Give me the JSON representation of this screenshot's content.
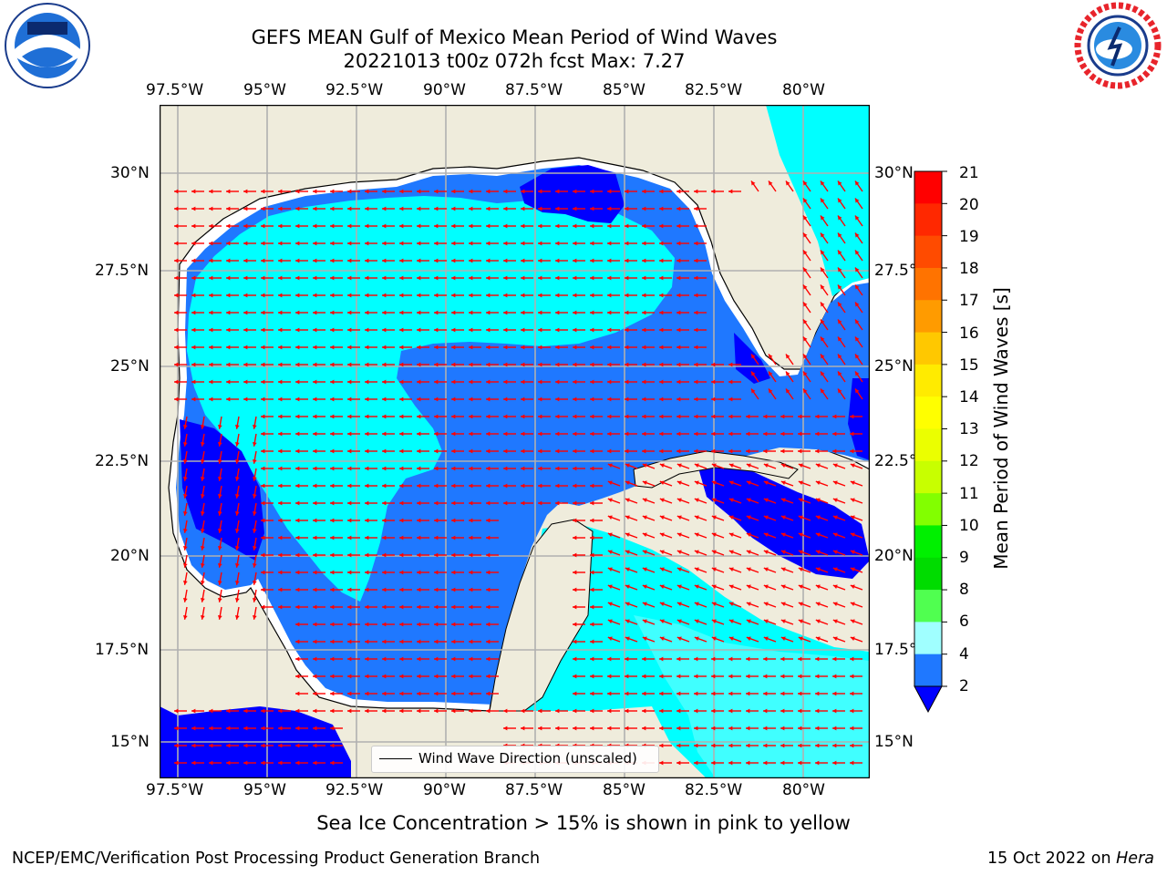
{
  "title": {
    "line1": "GEFS MEAN Gulf of Mexico Mean Period of Wind Waves",
    "line2": "20221013 t00z 072h fcst   Max: 7.27"
  },
  "map": {
    "lon_ticks": [
      "97.5°W",
      "95°W",
      "92.5°W",
      "90°W",
      "87.5°W",
      "85°W",
      "82.5°W",
      "80°W"
    ],
    "lat_ticks_left": [
      "30°N",
      "27.5°N",
      "25°N",
      "22.5°N",
      "20°N",
      "17.5°N",
      "15°N"
    ],
    "lat_ticks_right": [
      "30°N",
      "27.5°N",
      "25°N",
      "22.5°N",
      "20°N",
      "17.5°N",
      "15°N"
    ],
    "colors": {
      "land": "#efecdc",
      "water_bg": "#ffffff",
      "band_2_4": "#1f78ff",
      "band_dark": "#0000ff",
      "band_4_6": "#00ffff",
      "band_6_8": "#40ffff",
      "arrow": "#ff0000",
      "grid": "#b0b0b0"
    },
    "legend_label": "Wind Wave Direction (unscaled)"
  },
  "colorbar": {
    "label": "Mean Period of Wind Waves [s]",
    "ticks": [
      "21",
      "20",
      "19",
      "18",
      "17",
      "16",
      "15",
      "14",
      "13",
      "12",
      "11",
      "10",
      "9",
      "8",
      "6",
      "4",
      "2"
    ],
    "colors": [
      "#ff0000",
      "#ff2800",
      "#ff4b00",
      "#ff7300",
      "#ff9b00",
      "#ffc800",
      "#ffeb00",
      "#ffff00",
      "#ebff00",
      "#c8ff00",
      "#82ff00",
      "#00f000",
      "#00dc00",
      "#50ff50",
      "#a0ffff",
      "#40ffff",
      "#00ffff",
      "#1f78ff"
    ]
  },
  "ice_note": "Sea Ice Concentration > 15% is shown in pink to yellow",
  "footer": {
    "left": "NCEP/EMC/Verification Post Processing Product Generation Branch",
    "right_prefix": "15 Oct 2022 on ",
    "right_host": "Hera"
  }
}
